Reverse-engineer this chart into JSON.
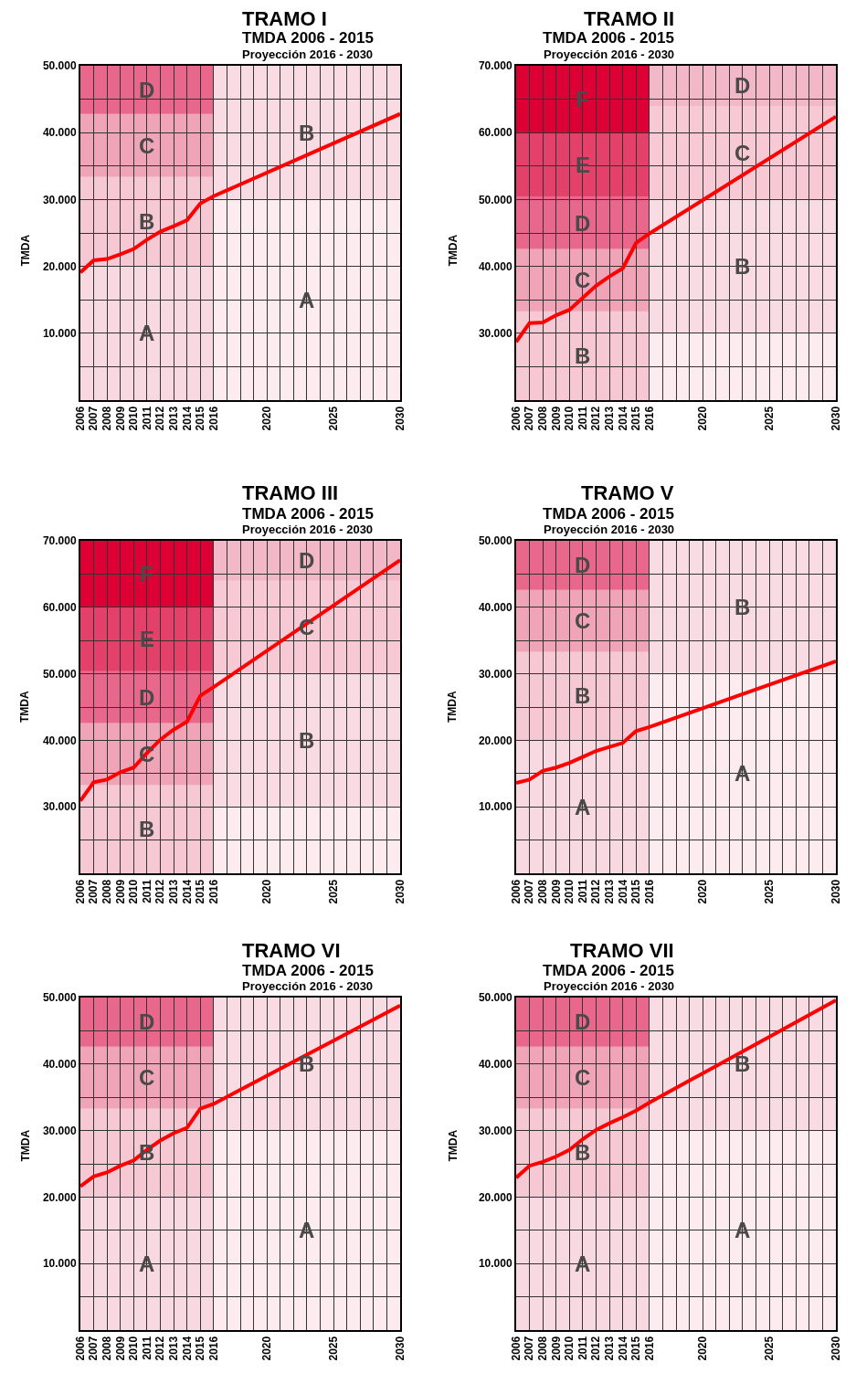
{
  "chart_data": [
    {
      "type": "line",
      "title": "TRAMO I",
      "subtitle": "TMDA 2006 - 2015\nProyección 2016 - 2030",
      "ylabel": "TMDA",
      "x": [
        2006,
        2007,
        2008,
        2009,
        2010,
        2011,
        2012,
        2013,
        2014,
        2015,
        2016,
        2030
      ],
      "series": [
        {
          "color": "#ff0000",
          "values": [
            19100,
            20900,
            21100,
            21800,
            22600,
            24000,
            25200,
            26000,
            26900,
            29400,
            30500,
            42800
          ]
        }
      ],
      "xlim": [
        2006,
        2030
      ],
      "xticks": [
        2006,
        2007,
        2008,
        2009,
        2010,
        2011,
        2012,
        2013,
        2014,
        2015,
        2016,
        {
          "value": 2017,
          "label": null
        },
        {
          "value": 2018,
          "label": null
        },
        {
          "value": 2019,
          "label": null
        },
        2020,
        {
          "value": 2021,
          "label": null
        },
        {
          "value": 2022,
          "label": null
        },
        {
          "value": 2023,
          "label": null
        },
        {
          "value": 2024,
          "label": null
        },
        2025,
        {
          "value": 2026,
          "label": null
        },
        {
          "value": 2027,
          "label": null
        },
        {
          "value": 2028,
          "label": null
        },
        {
          "value": 2029,
          "label": null
        },
        2030
      ],
      "ylim": [
        0,
        50000
      ],
      "yticks": [
        {
          "value": 5000,
          "label": null
        },
        {
          "value": 10000,
          "label": "10.000"
        },
        {
          "value": 15000,
          "label": null
        },
        {
          "value": 20000,
          "label": "20.000"
        },
        {
          "value": 25000,
          "label": null
        },
        {
          "value": 30000,
          "label": "30.000"
        },
        {
          "value": 35000,
          "label": null
        },
        {
          "value": 40000,
          "label": "40.000"
        },
        {
          "value": 45000,
          "label": null
        },
        {
          "value": 50000,
          "label": "50.000"
        }
      ],
      "grid": true,
      "marker": "none",
      "line_style": "solid",
      "bands": [
        {
          "axis": "x",
          "from": 2006,
          "to": 2016,
          "label": "A",
          "color": "#f9d9e1"
        },
        {
          "axis": "y",
          "from": 20000,
          "to": 33400,
          "label": "B",
          "color": "#f6c8d3"
        },
        {
          "axis": "y",
          "from": 33400,
          "to": 42800,
          "label": "C",
          "color": "#f0a4b8"
        },
        {
          "axis": "y",
          "from": 42800,
          "to": 50000,
          "label": "D",
          "color": "#e9678a"
        },
        {
          "axis": "x",
          "from": 2016,
          "to": 2030,
          "label": "A",
          "color": "#fcecf0"
        },
        {
          "axis": "y",
          "from": 30000,
          "to": 50000,
          "label": "B",
          "color": "#f9dbe3"
        }
      ]
    },
    {
      "type": "line",
      "title": "TRAMO II",
      "subtitle": "TMDA 2006 - 2015\nProyección 2016 - 2030",
      "ylabel": "TMDA",
      "x": [
        2006,
        2007,
        2008,
        2009,
        2010,
        2011,
        2012,
        2013,
        2014,
        2015,
        2016,
        2030
      ],
      "series": [
        {
          "color": "#ff0000",
          "values": [
            28700,
            31500,
            31600,
            32700,
            33500,
            35300,
            37100,
            38500,
            39700,
            43500,
            44900,
            62400
          ]
        }
      ],
      "xlim": [
        2006,
        2030
      ],
      "xticks": [
        2006,
        2007,
        2008,
        2009,
        2010,
        2011,
        2012,
        2013,
        2014,
        2015,
        2016,
        {
          "value": 2017,
          "label": null
        },
        {
          "value": 2018,
          "label": null
        },
        {
          "value": 2019,
          "label": null
        },
        2020,
        {
          "value": 2021,
          "label": null
        },
        {
          "value": 2022,
          "label": null
        },
        {
          "value": 2023,
          "label": null
        },
        {
          "value": 2024,
          "label": null
        },
        2025,
        {
          "value": 2026,
          "label": null
        },
        {
          "value": 2027,
          "label": null
        },
        {
          "value": 2028,
          "label": null
        },
        {
          "value": 2029,
          "label": null
        },
        2030
      ],
      "ylim": [
        20000,
        70000
      ],
      "yticks": [
        {
          "value": 25000,
          "label": null
        },
        {
          "value": 30000,
          "label": "30.000"
        },
        {
          "value": 35000,
          "label": null
        },
        {
          "value": 40000,
          "label": "40.000"
        },
        {
          "value": 45000,
          "label": null
        },
        {
          "value": 50000,
          "label": "50.000"
        },
        {
          "value": 55000,
          "label": null
        },
        {
          "value": 60000,
          "label": "60.000"
        },
        {
          "value": 65000,
          "label": null
        },
        {
          "value": 70000,
          "label": "70.000"
        }
      ],
      "grid": true,
      "marker": "none",
      "line_style": "solid",
      "bands": [
        {
          "axis": "x",
          "from": 2006,
          "to": 2016,
          "label": "B",
          "color": "#f6c8d3"
        },
        {
          "axis": "y",
          "from": 33300,
          "to": 42600,
          "label": "C",
          "color": "#f0a4b8"
        },
        {
          "axis": "y",
          "from": 42600,
          "to": 50400,
          "label": "D",
          "color": "#e9678a"
        },
        {
          "axis": "y",
          "from": 50400,
          "to": 60000,
          "label": "E",
          "color": "#e3416a"
        },
        {
          "axis": "y",
          "from": 60000,
          "to": 70000,
          "label": "F",
          "color": "#dc0035"
        },
        {
          "axis": "x",
          "from": 2016,
          "to": 2030,
          "label": null,
          "color": "#fcecf0"
        },
        {
          "axis": "y",
          "from": 30000,
          "to": 50000,
          "label": "B",
          "color": "#f9dbe3"
        },
        {
          "axis": "y",
          "from": 50000,
          "to": 64000,
          "label": "C",
          "color": "#f6c9d5"
        },
        {
          "axis": "y",
          "from": 64000,
          "to": 70000,
          "label": "D",
          "color": "#f2b8c8"
        }
      ]
    },
    {
      "type": "line",
      "title": "TRAMO III",
      "subtitle": "TMDA 2006 - 2015\nProyección 2016 - 2030",
      "ylabel": "TMDA",
      "x": [
        2006,
        2007,
        2008,
        2009,
        2010,
        2011,
        2012,
        2013,
        2014,
        2015,
        2016,
        2030
      ],
      "series": [
        {
          "color": "#ff0000",
          "values": [
            30900,
            33700,
            34100,
            35200,
            35900,
            38100,
            40100,
            41600,
            42800,
            46700,
            48000,
            67100
          ]
        }
      ],
      "xlim": [
        2006,
        2030
      ],
      "xticks": [
        2006,
        2007,
        2008,
        2009,
        2010,
        2011,
        2012,
        2013,
        2014,
        2015,
        2016,
        {
          "value": 2017,
          "label": null
        },
        {
          "value": 2018,
          "label": null
        },
        {
          "value": 2019,
          "label": null
        },
        2020,
        {
          "value": 2021,
          "label": null
        },
        {
          "value": 2022,
          "label": null
        },
        {
          "value": 2023,
          "label": null
        },
        {
          "value": 2024,
          "label": null
        },
        2025,
        {
          "value": 2026,
          "label": null
        },
        {
          "value": 2027,
          "label": null
        },
        {
          "value": 2028,
          "label": null
        },
        {
          "value": 2029,
          "label": null
        },
        2030
      ],
      "ylim": [
        20000,
        70000
      ],
      "yticks": [
        {
          "value": 25000,
          "label": null
        },
        {
          "value": 30000,
          "label": "30.000"
        },
        {
          "value": 35000,
          "label": null
        },
        {
          "value": 40000,
          "label": "40.000"
        },
        {
          "value": 45000,
          "label": null
        },
        {
          "value": 50000,
          "label": "50.000"
        },
        {
          "value": 55000,
          "label": null
        },
        {
          "value": 60000,
          "label": "60.000"
        },
        {
          "value": 65000,
          "label": null
        },
        {
          "value": 70000,
          "label": "70.000"
        }
      ],
      "grid": true,
      "marker": "none",
      "line_style": "solid",
      "bands": [
        {
          "axis": "x",
          "from": 2006,
          "to": 2016,
          "label": "B",
          "color": "#f6c8d3"
        },
        {
          "axis": "y",
          "from": 33300,
          "to": 42600,
          "label": "C",
          "color": "#f0a4b8"
        },
        {
          "axis": "y",
          "from": 42600,
          "to": 50400,
          "label": "D",
          "color": "#e9678a"
        },
        {
          "axis": "y",
          "from": 50400,
          "to": 60000,
          "label": "E",
          "color": "#e3416a"
        },
        {
          "axis": "y",
          "from": 60000,
          "to": 70000,
          "label": "F",
          "color": "#dc0035"
        },
        {
          "axis": "x",
          "from": 2016,
          "to": 2030,
          "label": null,
          "color": "#fcecf0"
        },
        {
          "axis": "y",
          "from": 30000,
          "to": 50000,
          "label": "B",
          "color": "#f9dbe3"
        },
        {
          "axis": "y",
          "from": 50000,
          "to": 64000,
          "label": "C",
          "color": "#f6c9d5"
        },
        {
          "axis": "y",
          "from": 64000,
          "to": 70000,
          "label": "D",
          "color": "#f2b8c8"
        }
      ]
    },
    {
      "type": "line",
      "title": "TRAMO V",
      "subtitle": "TMDA 2006 - 2015\nProyección 2016 - 2030",
      "ylabel": "TMDA",
      "x": [
        2006,
        2007,
        2008,
        2009,
        2010,
        2011,
        2012,
        2013,
        2014,
        2015,
        2016,
        2030
      ],
      "series": [
        {
          "color": "#ff0000",
          "values": [
            13600,
            14100,
            15400,
            15900,
            16600,
            17500,
            18400,
            19000,
            19600,
            21400,
            22000,
            31900
          ]
        }
      ],
      "xlim": [
        2006,
        2030
      ],
      "xticks": [
        2006,
        2007,
        2008,
        2009,
        2010,
        2011,
        2012,
        2013,
        2014,
        2015,
        2016,
        {
          "value": 2017,
          "label": null
        },
        {
          "value": 2018,
          "label": null
        },
        {
          "value": 2019,
          "label": null
        },
        2020,
        {
          "value": 2021,
          "label": null
        },
        {
          "value": 2022,
          "label": null
        },
        {
          "value": 2023,
          "label": null
        },
        {
          "value": 2024,
          "label": null
        },
        2025,
        {
          "value": 2026,
          "label": null
        },
        {
          "value": 2027,
          "label": null
        },
        {
          "value": 2028,
          "label": null
        },
        {
          "value": 2029,
          "label": null
        },
        2030
      ],
      "ylim": [
        0,
        50000
      ],
      "yticks": [
        {
          "value": 5000,
          "label": null
        },
        {
          "value": 10000,
          "label": "10.000"
        },
        {
          "value": 15000,
          "label": null
        },
        {
          "value": 20000,
          "label": "20.000"
        },
        {
          "value": 25000,
          "label": null
        },
        {
          "value": 30000,
          "label": "30.000"
        },
        {
          "value": 35000,
          "label": null
        },
        {
          "value": 40000,
          "label": "40.000"
        },
        {
          "value": 45000,
          "label": null
        },
        {
          "value": 50000,
          "label": "50.000"
        }
      ],
      "grid": true,
      "marker": "none",
      "line_style": "solid",
      "bands": [
        {
          "axis": "x",
          "from": 2006,
          "to": 2016,
          "label": "A",
          "color": "#f9d9e1"
        },
        {
          "axis": "y",
          "from": 20000,
          "to": 33300,
          "label": "B",
          "color": "#f6c8d3"
        },
        {
          "axis": "y",
          "from": 33300,
          "to": 42600,
          "label": "C",
          "color": "#f0a4b8"
        },
        {
          "axis": "y",
          "from": 42600,
          "to": 50000,
          "label": "D",
          "color": "#e9678a"
        },
        {
          "axis": "x",
          "from": 2016,
          "to": 2030,
          "label": "A",
          "color": "#fcecf0"
        },
        {
          "axis": "y",
          "from": 30000,
          "to": 50000,
          "label": "B",
          "color": "#f9dbe3"
        }
      ]
    },
    {
      "type": "line",
      "title": "TRAMO VI",
      "subtitle": "TMDA 2006 - 2015\nProyección 2016 - 2030",
      "ylabel": "TMDA",
      "x": [
        2006,
        2007,
        2008,
        2009,
        2010,
        2011,
        2012,
        2013,
        2014,
        2015,
        2016,
        2030
      ],
      "series": [
        {
          "color": "#ff0000",
          "values": [
            21600,
            23100,
            23700,
            24700,
            25500,
            27100,
            28500,
            29600,
            30400,
            33300,
            34000,
            48800
          ]
        }
      ],
      "xlim": [
        2006,
        2030
      ],
      "xticks": [
        2006,
        2007,
        2008,
        2009,
        2010,
        2011,
        2012,
        2013,
        2014,
        2015,
        2016,
        {
          "value": 2017,
          "label": null
        },
        {
          "value": 2018,
          "label": null
        },
        {
          "value": 2019,
          "label": null
        },
        2020,
        {
          "value": 2021,
          "label": null
        },
        {
          "value": 2022,
          "label": null
        },
        {
          "value": 2023,
          "label": null
        },
        {
          "value": 2024,
          "label": null
        },
        2025,
        {
          "value": 2026,
          "label": null
        },
        {
          "value": 2027,
          "label": null
        },
        {
          "value": 2028,
          "label": null
        },
        {
          "value": 2029,
          "label": null
        },
        2030
      ],
      "ylim": [
        0,
        50000
      ],
      "yticks": [
        {
          "value": 5000,
          "label": null
        },
        {
          "value": 10000,
          "label": "10.000"
        },
        {
          "value": 15000,
          "label": null
        },
        {
          "value": 20000,
          "label": "20.000"
        },
        {
          "value": 25000,
          "label": null
        },
        {
          "value": 30000,
          "label": "30.000"
        },
        {
          "value": 35000,
          "label": null
        },
        {
          "value": 40000,
          "label": "40.000"
        },
        {
          "value": 45000,
          "label": null
        },
        {
          "value": 50000,
          "label": "50.000"
        }
      ],
      "grid": true,
      "marker": "none",
      "line_style": "solid",
      "bands": [
        {
          "axis": "x",
          "from": 2006,
          "to": 2016,
          "label": "A",
          "color": "#f9d9e1"
        },
        {
          "axis": "y",
          "from": 20000,
          "to": 33300,
          "label": "B",
          "color": "#f6c8d3"
        },
        {
          "axis": "y",
          "from": 33300,
          "to": 42600,
          "label": "C",
          "color": "#f0a4b8"
        },
        {
          "axis": "y",
          "from": 42600,
          "to": 50000,
          "label": "D",
          "color": "#e9678a"
        },
        {
          "axis": "x",
          "from": 2016,
          "to": 2030,
          "label": "A",
          "color": "#fcecf0"
        },
        {
          "axis": "y",
          "from": 30000,
          "to": 50000,
          "label": "B",
          "color": "#f9dbe3"
        }
      ]
    },
    {
      "type": "line",
      "title": "TRAMO VII",
      "subtitle": "TMDA 2006 - 2015\nProyección 2016 - 2030",
      "ylabel": "TMDA",
      "x": [
        2006,
        2007,
        2008,
        2009,
        2010,
        2011,
        2012,
        2013,
        2014,
        2015,
        2016,
        2030
      ],
      "series": [
        {
          "color": "#ff0000",
          "values": [
            22900,
            24700,
            25300,
            26100,
            27100,
            28700,
            30100,
            31100,
            32000,
            33000,
            34200,
            49600
          ]
        }
      ],
      "xlim": [
        2006,
        2030
      ],
      "xticks": [
        2006,
        2007,
        2008,
        2009,
        2010,
        2011,
        2012,
        2013,
        2014,
        2015,
        2016,
        {
          "value": 2017,
          "label": null
        },
        {
          "value": 2018,
          "label": null
        },
        {
          "value": 2019,
          "label": null
        },
        2020,
        {
          "value": 2021,
          "label": null
        },
        {
          "value": 2022,
          "label": null
        },
        {
          "value": 2023,
          "label": null
        },
        {
          "value": 2024,
          "label": null
        },
        2025,
        {
          "value": 2026,
          "label": null
        },
        {
          "value": 2027,
          "label": null
        },
        {
          "value": 2028,
          "label": null
        },
        {
          "value": 2029,
          "label": null
        },
        2030
      ],
      "ylim": [
        0,
        50000
      ],
      "yticks": [
        {
          "value": 5000,
          "label": null
        },
        {
          "value": 10000,
          "label": "10.000"
        },
        {
          "value": 15000,
          "label": null
        },
        {
          "value": 20000,
          "label": "20.000"
        },
        {
          "value": 25000,
          "label": null
        },
        {
          "value": 30000,
          "label": "30.000"
        },
        {
          "value": 35000,
          "label": null
        },
        {
          "value": 40000,
          "label": "40.000"
        },
        {
          "value": 45000,
          "label": null
        },
        {
          "value": 50000,
          "label": "50.000"
        }
      ],
      "grid": true,
      "marker": "none",
      "line_style": "solid",
      "bands": [
        {
          "axis": "x",
          "from": 2006,
          "to": 2016,
          "label": "A",
          "color": "#f9d9e1"
        },
        {
          "axis": "y",
          "from": 20000,
          "to": 33300,
          "label": "B",
          "color": "#f6c8d3"
        },
        {
          "axis": "y",
          "from": 33300,
          "to": 42600,
          "label": "C",
          "color": "#f0a4b8"
        },
        {
          "axis": "y",
          "from": 42600,
          "to": 50000,
          "label": "D",
          "color": "#e9678a"
        },
        {
          "axis": "x",
          "from": 2016,
          "to": 2030,
          "label": "A",
          "color": "#fcecf0"
        },
        {
          "axis": "y",
          "from": 30000,
          "to": 50000,
          "label": "B",
          "color": "#f9dbe3"
        }
      ]
    }
  ]
}
